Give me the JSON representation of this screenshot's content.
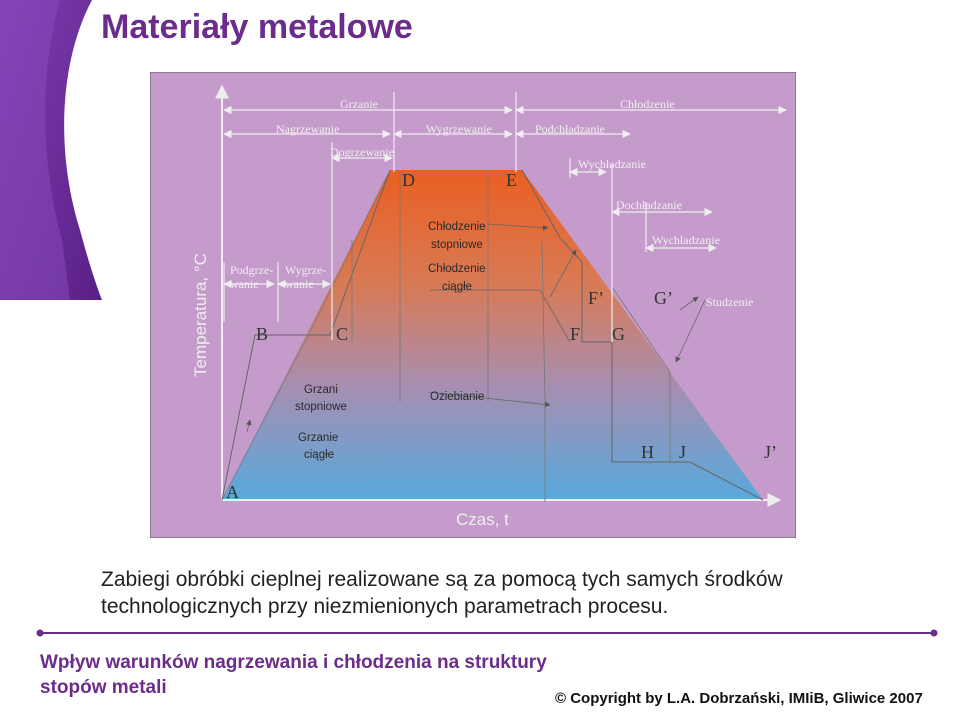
{
  "slide": {
    "title": "Materiały metalowe",
    "caption_line1": "Zabiegi obróbki cieplnej realizowane są za pomocą tych samych środków",
    "caption_line2": "technologicznych przy niezmienionych parametrach procesu.",
    "footer_title_line1": "Wpływ warunków nagrzewania i chłodzenia na struktury",
    "footer_title_line2": "stopów metali",
    "copyright": "© Copyright by L.A. Dobrzański, IMIiB, Gliwice 2007"
  },
  "diagram": {
    "y_axis_label": "Temperatura, °C",
    "x_axis_label": "Czas, t",
    "phases": {
      "grzanie": "Grzanie",
      "chlodzenie": "Chłodzenie",
      "nagrzewanie": "Nagrzewanie",
      "wygrzewanie": "Wygrzewanie",
      "podchladzanie": "Podchładzanie",
      "dogrzewanie": "Dogrzewanie",
      "wychladzanie_top": "Wychładzanie",
      "dochladzanie": "Dochładzanie",
      "wychladzanie_right": "Wychładzanie",
      "studzenie": "Studzenie",
      "podgrzewanie_1": "Podgrze-",
      "podgrzewanie_2": "wanie",
      "wygrzewanie_small_1": "Wygrze-",
      "wygrzewanie_small_2": "wanie"
    },
    "methods": {
      "chlodzenie_stopniowe_1": "Chłodzenie",
      "chlodzenie_stopniowe_2": "stopniowe",
      "chlodzenie_ciagle_1": "Chłodzenie",
      "chlodzenie_ciagle_2": "ciągłe",
      "grzanie_stopniowe_1": "Grzani",
      "grzanie_stopniowe_2": "stopniowe",
      "oziebianie": "Oziebianie",
      "grzanie_ciagle_1": "Grzanie",
      "grzanie_ciagle_2": "ciągłe"
    },
    "points": {
      "A": "A",
      "B": "B",
      "C": "C",
      "D": "D",
      "E": "E",
      "F": "F",
      "F_prime": "F’",
      "G": "G",
      "G_prime": "G’",
      "H": "H",
      "J": "J",
      "J_prime": "J’"
    },
    "colors": {
      "panel_bg": "#c59bcb",
      "hot": "#e8642a",
      "cold": "#5aa6d8",
      "title": "#6b2c8c"
    }
  }
}
